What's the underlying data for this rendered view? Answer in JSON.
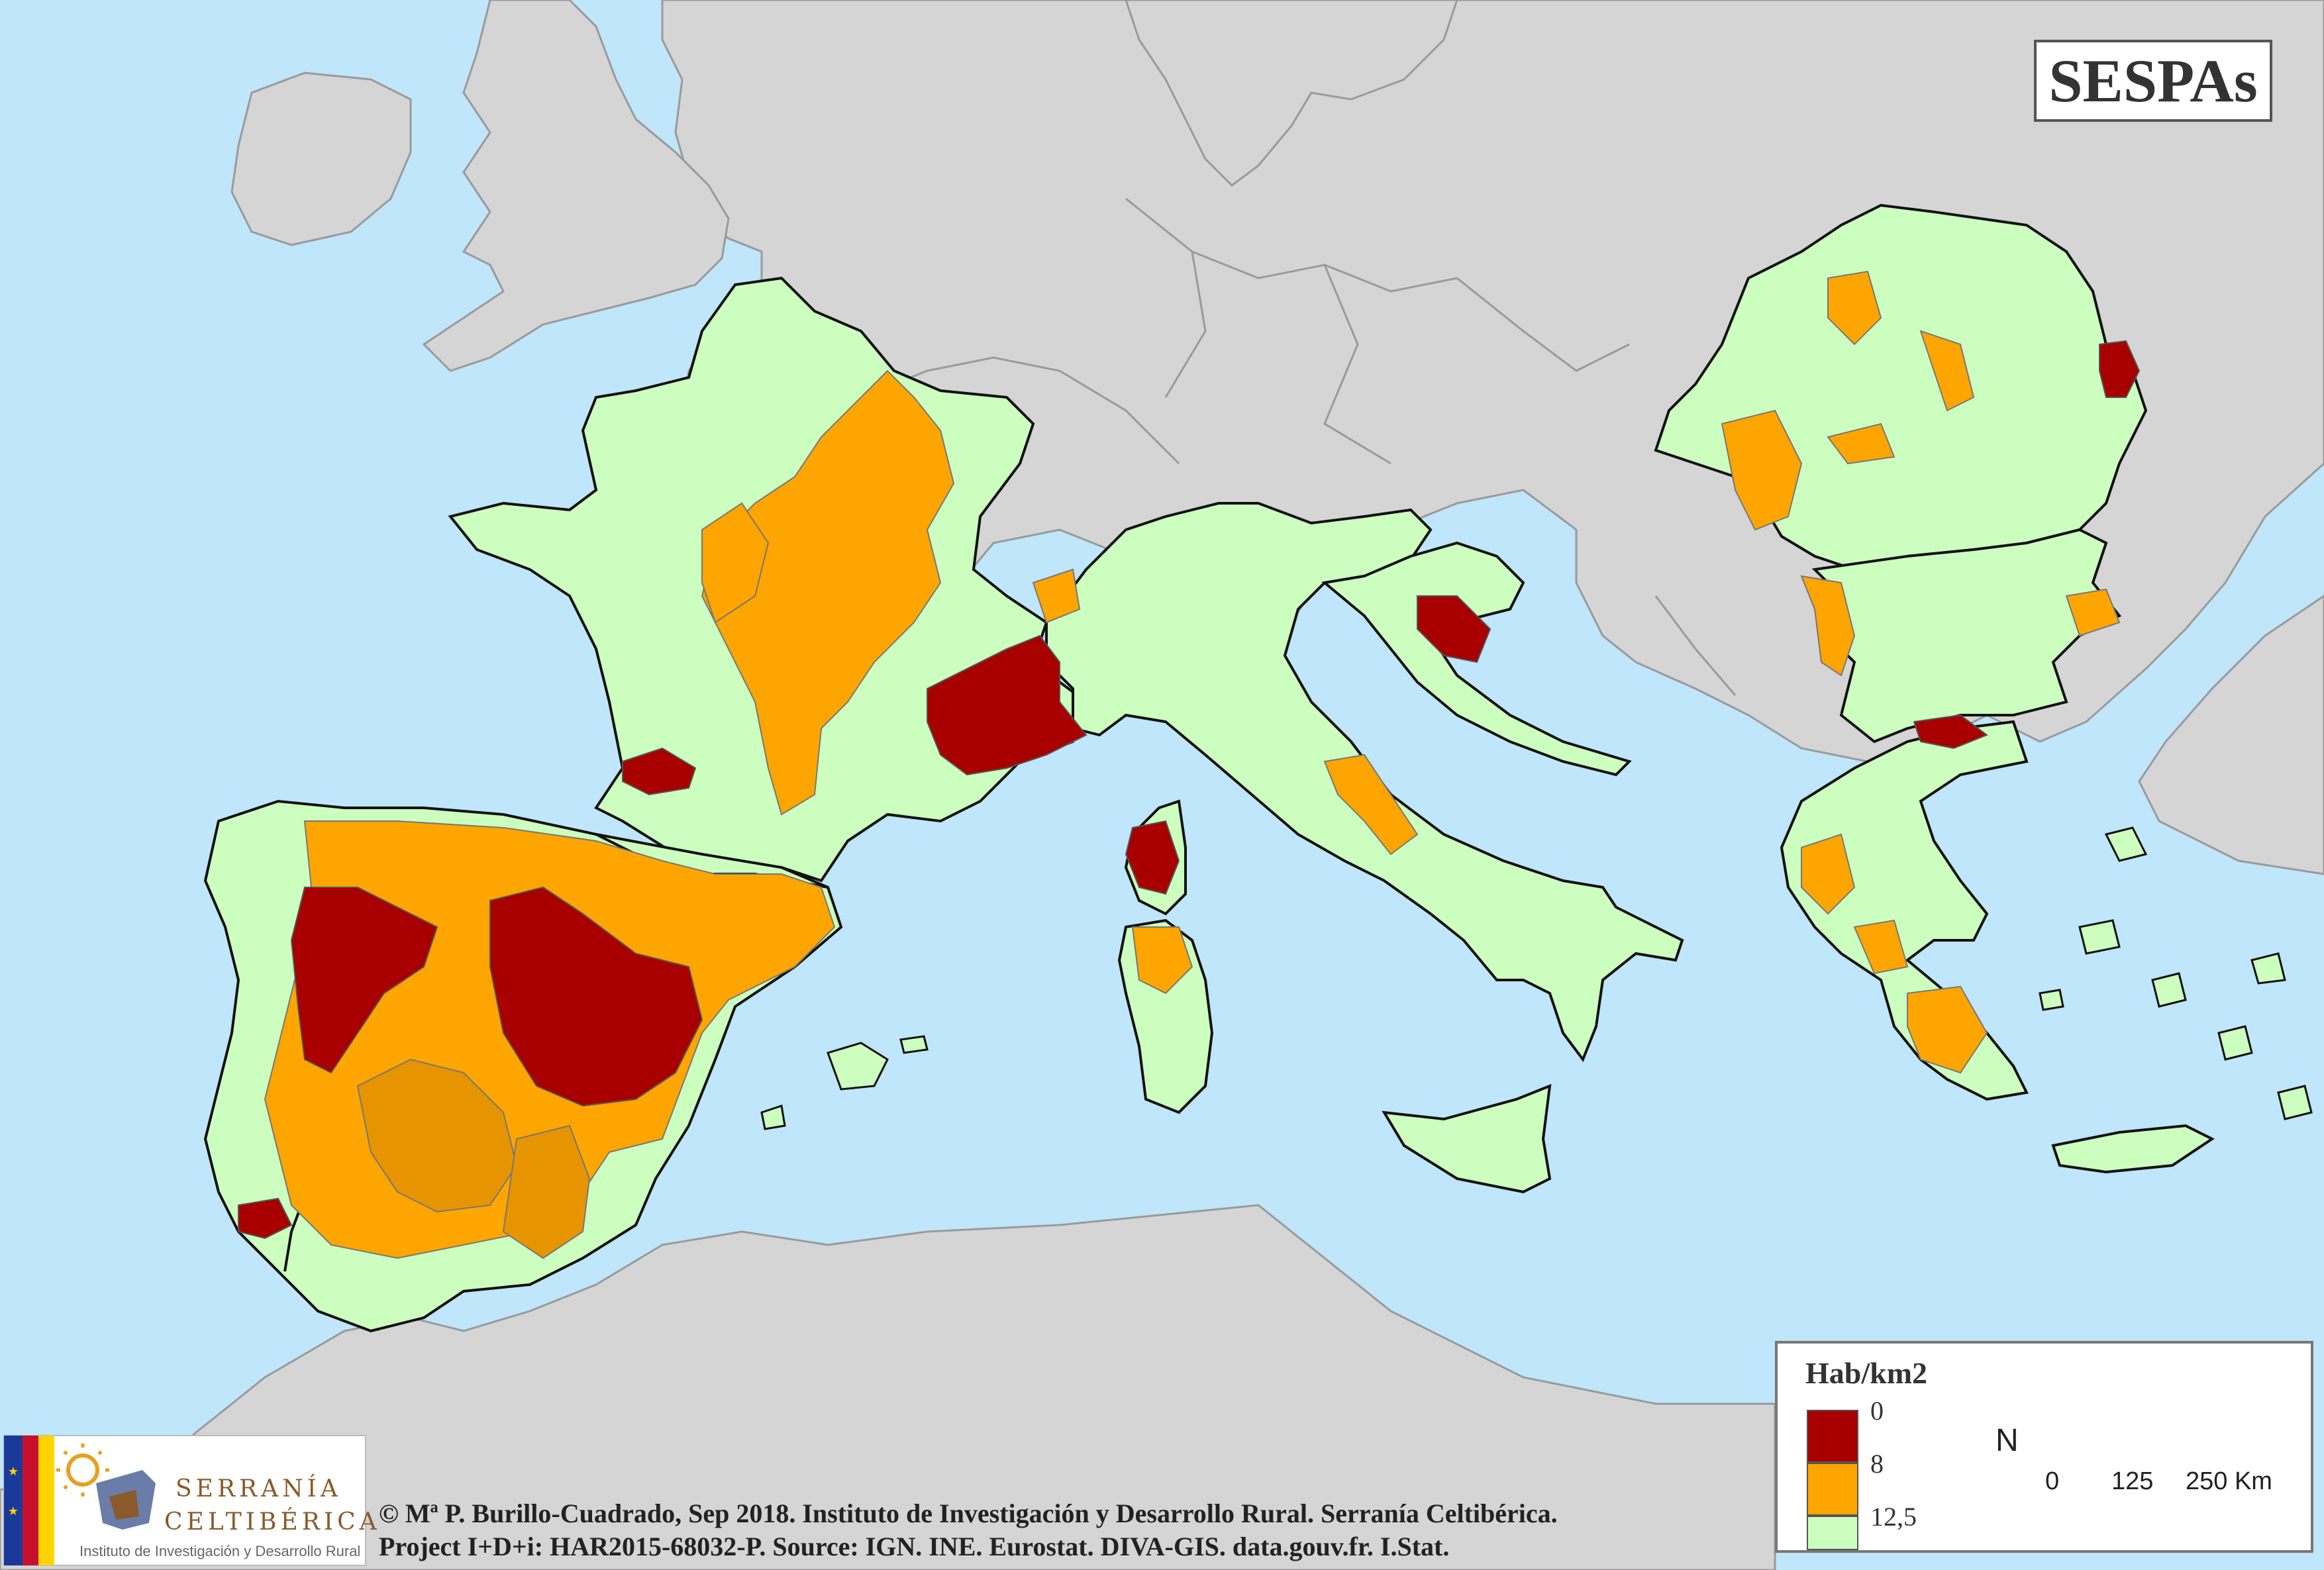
{
  "title": "SESPAs",
  "legend": {
    "title": "Hab/km2",
    "classes": [
      {
        "label": "0",
        "color": "#a80000"
      },
      {
        "label": "8",
        "color": "#ffa500"
      },
      {
        "label": "12,5",
        "color": "#ccffbf"
      }
    ]
  },
  "north_label": "N",
  "scale": {
    "ticks": [
      "0",
      "125",
      "250 Km"
    ]
  },
  "logo": {
    "name_line1": "SERRANÍA",
    "name_line2": "CELTIBÉRICA",
    "subtitle": "Instituto de Investigación y Desarrollo Rural"
  },
  "credits": {
    "line1": "© Mª P. Burillo-Cuadrado, Sep 2018. Instituto de Investigación y Desarrollo Rural. Serranía Celtibérica.",
    "line2": "Project I+D+i: HAR2015-68032-P. Source: IGN. INE. Eurostat. DIVA-GIS. data.gouv.fr. I.Stat."
  },
  "colors": {
    "sea": "#bfe6fb",
    "outside": "#d5d5d5",
    "study_area": "#ccffbf"
  }
}
